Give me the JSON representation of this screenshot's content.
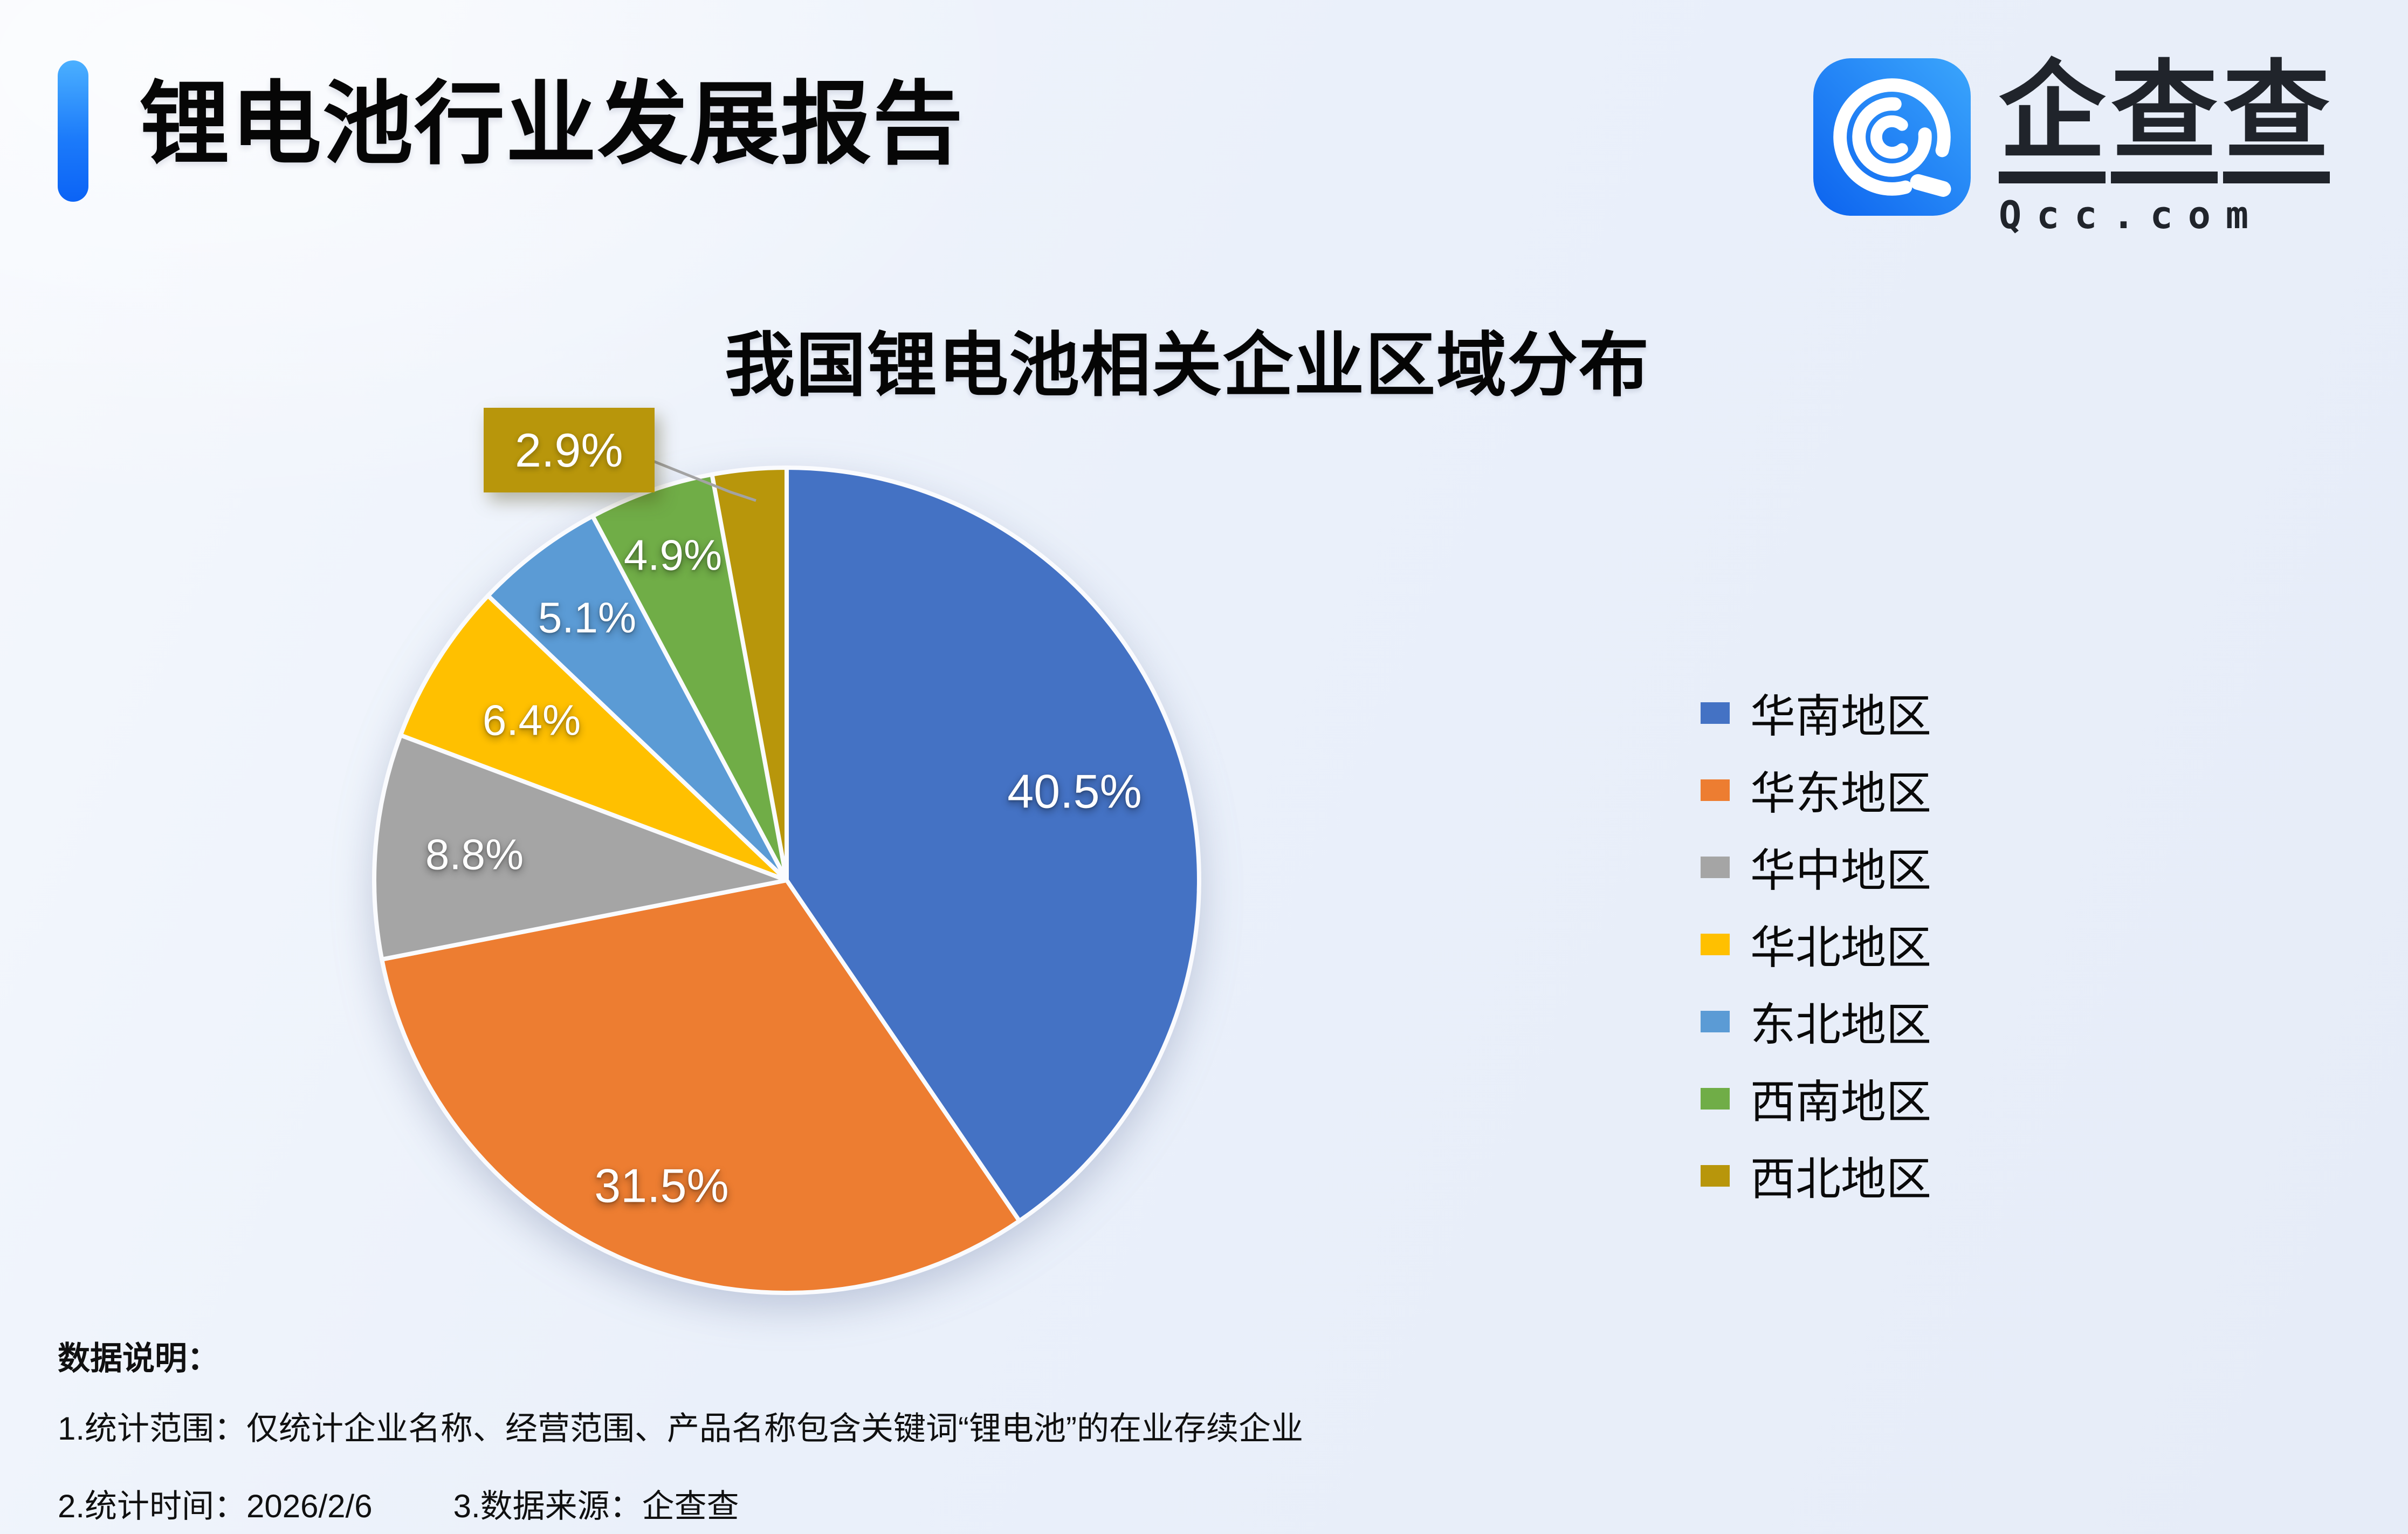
{
  "header": {
    "title": "锂电池行业发展报告"
  },
  "logo": {
    "icon": "qcc-spiral-icon",
    "brand_chars": [
      "企",
      "查",
      "查"
    ],
    "domain": "Qcc.com",
    "icon_gradient": [
      "#3BA6FC",
      "#0C63EF"
    ]
  },
  "chart_data": {
    "type": "pie",
    "title": "我国锂电池相关企业区域分布",
    "categories": [
      "华南地区",
      "华东地区",
      "华中地区",
      "华北地区",
      "东北地区",
      "西南地区",
      "西北地区"
    ],
    "values": [
      40.5,
      31.5,
      8.8,
      6.4,
      5.1,
      4.9,
      2.9
    ],
    "labels": [
      "40.5%",
      "31.5%",
      "8.8%",
      "6.4%",
      "5.1%",
      "4.9%",
      "2.9%"
    ],
    "unit": "%",
    "colors": [
      "#4472C4",
      "#ED7D31",
      "#A5A5A5",
      "#FFC000",
      "#5B9BD5",
      "#70AD47",
      "#B8960B"
    ],
    "start_angle_deg": 0,
    "direction": "clockwise",
    "legend_position": "right",
    "callout": {
      "index": 6,
      "label": "2.9%"
    }
  },
  "notes": {
    "heading": "数据说明：",
    "line1": "1.统计范围：仅统计企业名称、经营范围、产品名称包含关键词“锂电池”的在业存续企业",
    "line2a": "2.统计时间：2026/2/6",
    "line2b": "3.数据来源：企查查"
  },
  "colors": {
    "accent_blue": "#0B63F6",
    "background": "#EAF0FA",
    "leader_line": "#A3A3A3"
  }
}
